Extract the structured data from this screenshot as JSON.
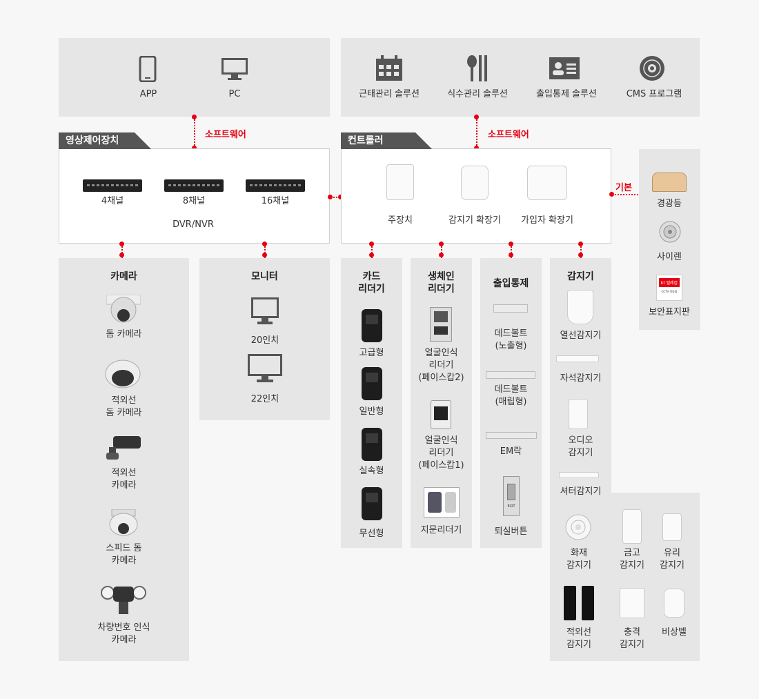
{
  "top_left": {
    "items": [
      {
        "label": "APP",
        "icon": "smartphone-icon"
      },
      {
        "label": "PC",
        "icon": "monitor-icon"
      }
    ]
  },
  "top_right": {
    "items": [
      {
        "label": "근태관리 솔루션",
        "icon": "calendar-icon"
      },
      {
        "label": "식수관리 솔루션",
        "icon": "cutlery-icon"
      },
      {
        "label": "출입통제 솔루션",
        "icon": "id-card-icon"
      },
      {
        "label": "CMS 프로그램",
        "icon": "disc-icon"
      }
    ]
  },
  "software_left": "소프트웨어",
  "software_right": "소프트웨어",
  "video": {
    "tab": "영상제어장치",
    "channels": [
      "4채널",
      "8채널",
      "16채널"
    ],
    "caption": "DVR/NVR"
  },
  "controller": {
    "tab": "컨트롤러",
    "items": [
      "주장치",
      "감지기 확장기",
      "가입자 확장기"
    ]
  },
  "basic_label": "기본",
  "side": {
    "items": [
      "경광등",
      "사이렌",
      "보안표지판"
    ],
    "sign_brand": "kt 텔레캅",
    "sign_text": "CCTV 작동중"
  },
  "camera": {
    "title": "카메라",
    "items": [
      "돔 카메라",
      "적외선\n돔 카메라",
      "적외선\n카메라",
      "스피드 돔\n카메라",
      "차량번호 인식\n카메라"
    ]
  },
  "monitor": {
    "title": "모니터",
    "items": [
      "20인치",
      "22인치"
    ]
  },
  "card": {
    "title": "카드\n리더기",
    "items": [
      "고급형",
      "일반형",
      "실속형",
      "무선형"
    ]
  },
  "bio": {
    "title": "생체인\n리더기",
    "items": [
      "얼굴인식\n리더기\n(페이스캅2)",
      "얼굴인식\n리더기\n(페이스캅1)",
      "지문리더기"
    ]
  },
  "access": {
    "title": "출입통제",
    "items": [
      "데드볼트\n(노출형)",
      "데드볼트\n(매립형)",
      "EM락",
      "퇴실버튼"
    ],
    "exit_text": "EXIT"
  },
  "sensor": {
    "title": "감지기",
    "items": [
      "열선감지기",
      "자석감지기",
      "오디오\n감지기",
      "셔터감지기"
    ],
    "grid": [
      "화재\n감지기",
      "금고\n감지기",
      "유리\n감지기",
      "적외선\n감지기",
      "충격\n감지기",
      "비상벨"
    ]
  },
  "colors": {
    "accent": "#e60012",
    "panel": "#e6e6e6",
    "tab": "#555555"
  }
}
